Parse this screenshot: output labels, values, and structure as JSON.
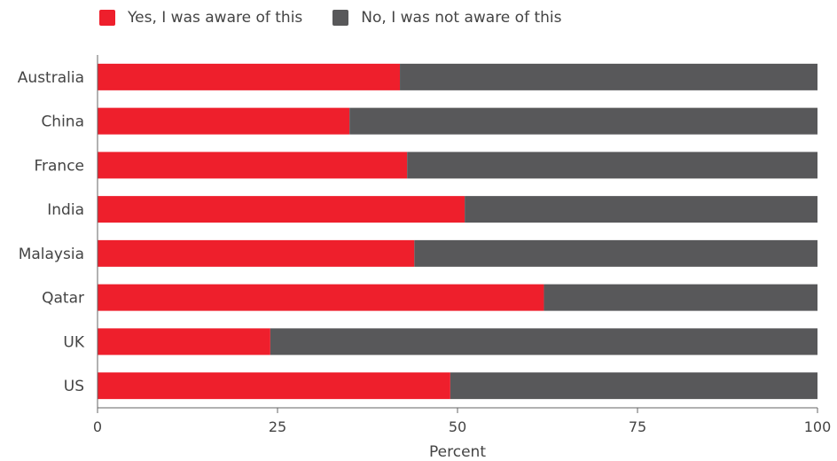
{
  "chart_data": {
    "type": "bar",
    "orientation": "horizontal",
    "stacked": true,
    "categories": [
      "Australia",
      "China",
      "France",
      "India",
      "Malaysia",
      "Qatar",
      "UK",
      "US"
    ],
    "series": [
      {
        "name": "Yes, I was aware of this",
        "color": "#ee1f2c",
        "values": [
          42,
          35,
          43,
          51,
          44,
          62,
          24,
          49
        ]
      },
      {
        "name": "No, I was not aware of this",
        "color": "#58585a",
        "values": [
          58,
          65,
          57,
          49,
          56,
          38,
          76,
          51
        ]
      }
    ],
    "xlabel": "Percent",
    "xlim": [
      0,
      100
    ],
    "xticks": [
      "0",
      "25",
      "50",
      "75",
      "100"
    ],
    "grid": false,
    "legend_position": "top-left"
  }
}
